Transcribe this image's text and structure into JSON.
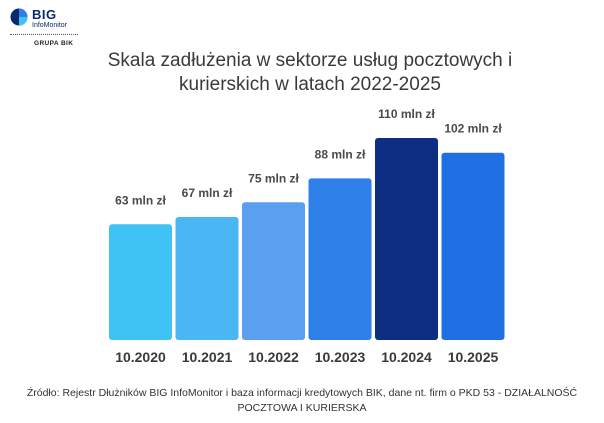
{
  "logo": {
    "brand": "BIG",
    "sub": "InfoMonitor",
    "group": "GRUPA BIK"
  },
  "chart_data": {
    "type": "bar",
    "title": "Skala zadłużenia w sektorze usług pocztowych i kurierskich w latach 2022-2025",
    "categories": [
      "10.2020",
      "10.2021",
      "10.2022",
      "10.2023",
      "10.2024",
      "10.2025"
    ],
    "values": [
      63,
      67,
      75,
      88,
      110,
      102
    ],
    "data_labels": [
      "63 mln zł",
      "67 mln zł",
      "75 mln zł",
      "88 mln zł",
      "110 mln zł",
      "102 mln zł"
    ],
    "colors": [
      "#3fc3f5",
      "#4ab6f3",
      "#5a9ff0",
      "#2f7fe8",
      "#0d2e82",
      "#2070e3"
    ],
    "xlabel": "",
    "ylabel": "",
    "ylim": [
      0,
      110
    ],
    "grid": false,
    "legend": "none"
  },
  "source": {
    "line1": "Źródło: Rejestr Dłużników BIG InfoMonitor i baza informacji kredytowych BIK, dane nt. firm o PKD 53 - DZIAŁALNOŚĆ",
    "line2": "POCZTOWA I KURIERSKA"
  }
}
